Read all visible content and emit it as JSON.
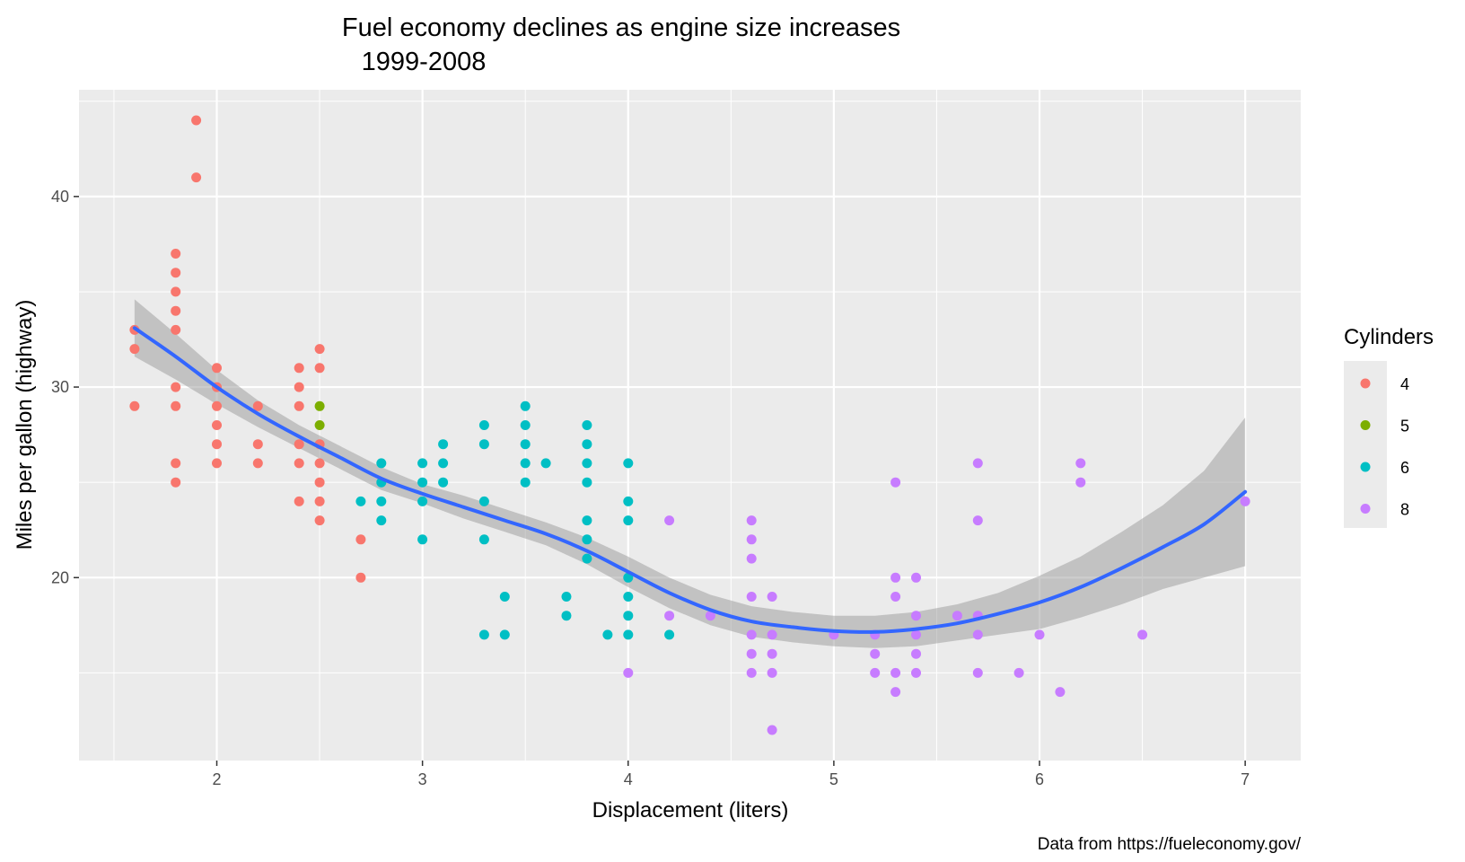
{
  "chart_data": {
    "type": "scatter",
    "title": "Fuel economy declines as engine size increases",
    "subtitle": "1999-2008",
    "xlabel": "Displacement (liters)",
    "ylabel": "Miles per gallon (highway)",
    "caption": "Data from https://fueleconomy.gov/",
    "xlim": [
      1.33,
      7.27
    ],
    "ylim": [
      10.4,
      45.6
    ],
    "x_ticks": [
      "2",
      "3",
      "4",
      "5",
      "6",
      "7"
    ],
    "y_ticks": [
      "20",
      "30",
      "40"
    ],
    "grid": true,
    "legend": {
      "title": "Cylinders",
      "placement": "right"
    },
    "series": [
      {
        "name": "4",
        "color": "#F8766D",
        "points": [
          [
            1.6,
            33
          ],
          [
            1.6,
            32
          ],
          [
            1.6,
            29
          ],
          [
            1.8,
            37
          ],
          [
            1.8,
            36
          ],
          [
            1.8,
            35
          ],
          [
            1.8,
            34
          ],
          [
            1.8,
            33
          ],
          [
            1.8,
            30
          ],
          [
            1.8,
            29
          ],
          [
            1.8,
            26
          ],
          [
            1.8,
            25
          ],
          [
            1.9,
            44
          ],
          [
            1.9,
            41
          ],
          [
            2.0,
            31
          ],
          [
            2.0,
            30
          ],
          [
            2.0,
            29
          ],
          [
            2.0,
            28
          ],
          [
            2.0,
            27
          ],
          [
            2.0,
            26
          ],
          [
            2.2,
            29
          ],
          [
            2.2,
            27
          ],
          [
            2.2,
            26
          ],
          [
            2.4,
            31
          ],
          [
            2.4,
            30
          ],
          [
            2.4,
            29
          ],
          [
            2.4,
            27
          ],
          [
            2.4,
            26
          ],
          [
            2.4,
            24
          ],
          [
            2.5,
            32
          ],
          [
            2.5,
            31
          ],
          [
            2.5,
            27
          ],
          [
            2.5,
            26
          ],
          [
            2.5,
            25
          ],
          [
            2.5,
            24
          ],
          [
            2.5,
            23
          ],
          [
            2.7,
            22
          ],
          [
            2.7,
            20
          ]
        ]
      },
      {
        "name": "5",
        "color": "#7CAE00",
        "points": [
          [
            2.5,
            29
          ],
          [
            2.5,
            28
          ]
        ]
      },
      {
        "name": "6",
        "color": "#00BFC4",
        "points": [
          [
            2.7,
            24
          ],
          [
            2.8,
            26
          ],
          [
            2.8,
            25
          ],
          [
            2.8,
            24
          ],
          [
            2.8,
            23
          ],
          [
            3.0,
            26
          ],
          [
            3.0,
            25
          ],
          [
            3.0,
            24
          ],
          [
            3.0,
            22
          ],
          [
            3.1,
            27
          ],
          [
            3.1,
            26
          ],
          [
            3.1,
            25
          ],
          [
            3.3,
            28
          ],
          [
            3.3,
            27
          ],
          [
            3.3,
            24
          ],
          [
            3.3,
            22
          ],
          [
            3.3,
            17
          ],
          [
            3.4,
            19
          ],
          [
            3.4,
            17
          ],
          [
            3.5,
            29
          ],
          [
            3.5,
            28
          ],
          [
            3.5,
            27
          ],
          [
            3.5,
            26
          ],
          [
            3.5,
            25
          ],
          [
            3.6,
            26
          ],
          [
            3.7,
            19
          ],
          [
            3.7,
            18
          ],
          [
            3.8,
            28
          ],
          [
            3.8,
            27
          ],
          [
            3.8,
            26
          ],
          [
            3.8,
            25
          ],
          [
            3.8,
            23
          ],
          [
            3.8,
            22
          ],
          [
            3.8,
            21
          ],
          [
            3.9,
            17
          ],
          [
            4.0,
            26
          ],
          [
            4.0,
            24
          ],
          [
            4.0,
            23
          ],
          [
            4.0,
            20
          ],
          [
            4.0,
            19
          ],
          [
            4.0,
            18
          ],
          [
            4.0,
            17
          ],
          [
            4.2,
            17
          ]
        ]
      },
      {
        "name": "8",
        "color": "#C77CFF",
        "points": [
          [
            4.0,
            15
          ],
          [
            4.2,
            23
          ],
          [
            4.2,
            18
          ],
          [
            4.4,
            18
          ],
          [
            4.6,
            23
          ],
          [
            4.6,
            22
          ],
          [
            4.6,
            21
          ],
          [
            4.6,
            19
          ],
          [
            4.6,
            17
          ],
          [
            4.6,
            16
          ],
          [
            4.6,
            15
          ],
          [
            4.7,
            19
          ],
          [
            4.7,
            17
          ],
          [
            4.7,
            16
          ],
          [
            4.7,
            15
          ],
          [
            4.7,
            12
          ],
          [
            5.0,
            17
          ],
          [
            5.2,
            17
          ],
          [
            5.2,
            16
          ],
          [
            5.2,
            15
          ],
          [
            5.3,
            25
          ],
          [
            5.3,
            20
          ],
          [
            5.3,
            19
          ],
          [
            5.3,
            15
          ],
          [
            5.3,
            14
          ],
          [
            5.4,
            20
          ],
          [
            5.4,
            18
          ],
          [
            5.4,
            17
          ],
          [
            5.4,
            16
          ],
          [
            5.4,
            15
          ],
          [
            5.6,
            18
          ],
          [
            5.7,
            26
          ],
          [
            5.7,
            23
          ],
          [
            5.7,
            18
          ],
          [
            5.7,
            17
          ],
          [
            5.7,
            15
          ],
          [
            5.9,
            15
          ],
          [
            6.0,
            17
          ],
          [
            6.1,
            14
          ],
          [
            6.2,
            26
          ],
          [
            6.2,
            25
          ],
          [
            6.5,
            17
          ],
          [
            7.0,
            24
          ]
        ]
      }
    ],
    "smooth": {
      "color": "#3366FF",
      "band_color": "#999999",
      "points": [
        [
          1.6,
          33.1,
          31.6,
          34.6
        ],
        [
          1.8,
          31.6,
          30.4,
          32.8
        ],
        [
          2.0,
          30.0,
          29.1,
          30.9
        ],
        [
          2.2,
          28.6,
          27.9,
          29.3
        ],
        [
          2.4,
          27.4,
          26.8,
          28.0
        ],
        [
          2.6,
          26.3,
          25.7,
          26.9
        ],
        [
          2.8,
          25.2,
          24.6,
          25.8
        ],
        [
          3.0,
          24.4,
          23.9,
          24.9
        ],
        [
          3.2,
          23.7,
          23.1,
          24.3
        ],
        [
          3.4,
          23.0,
          22.4,
          23.6
        ],
        [
          3.6,
          22.3,
          21.7,
          22.9
        ],
        [
          3.8,
          21.4,
          20.7,
          22.1
        ],
        [
          4.0,
          20.3,
          19.5,
          21.1
        ],
        [
          4.2,
          19.2,
          18.4,
          20.0
        ],
        [
          4.4,
          18.3,
          17.5,
          19.1
        ],
        [
          4.6,
          17.7,
          16.9,
          18.5
        ],
        [
          4.8,
          17.4,
          16.6,
          18.2
        ],
        [
          5.0,
          17.2,
          16.4,
          18.0
        ],
        [
          5.2,
          17.15,
          16.3,
          18.0
        ],
        [
          5.4,
          17.3,
          16.4,
          18.2
        ],
        [
          5.6,
          17.6,
          16.7,
          18.6
        ],
        [
          5.8,
          18.1,
          17.0,
          19.2
        ],
        [
          6.0,
          18.7,
          17.3,
          20.1
        ],
        [
          6.2,
          19.5,
          17.9,
          21.1
        ],
        [
          6.4,
          20.5,
          18.6,
          22.4
        ],
        [
          6.6,
          21.6,
          19.4,
          23.8
        ],
        [
          6.8,
          22.8,
          20.0,
          25.6
        ],
        [
          7.0,
          24.5,
          20.6,
          28.4
        ]
      ]
    }
  }
}
